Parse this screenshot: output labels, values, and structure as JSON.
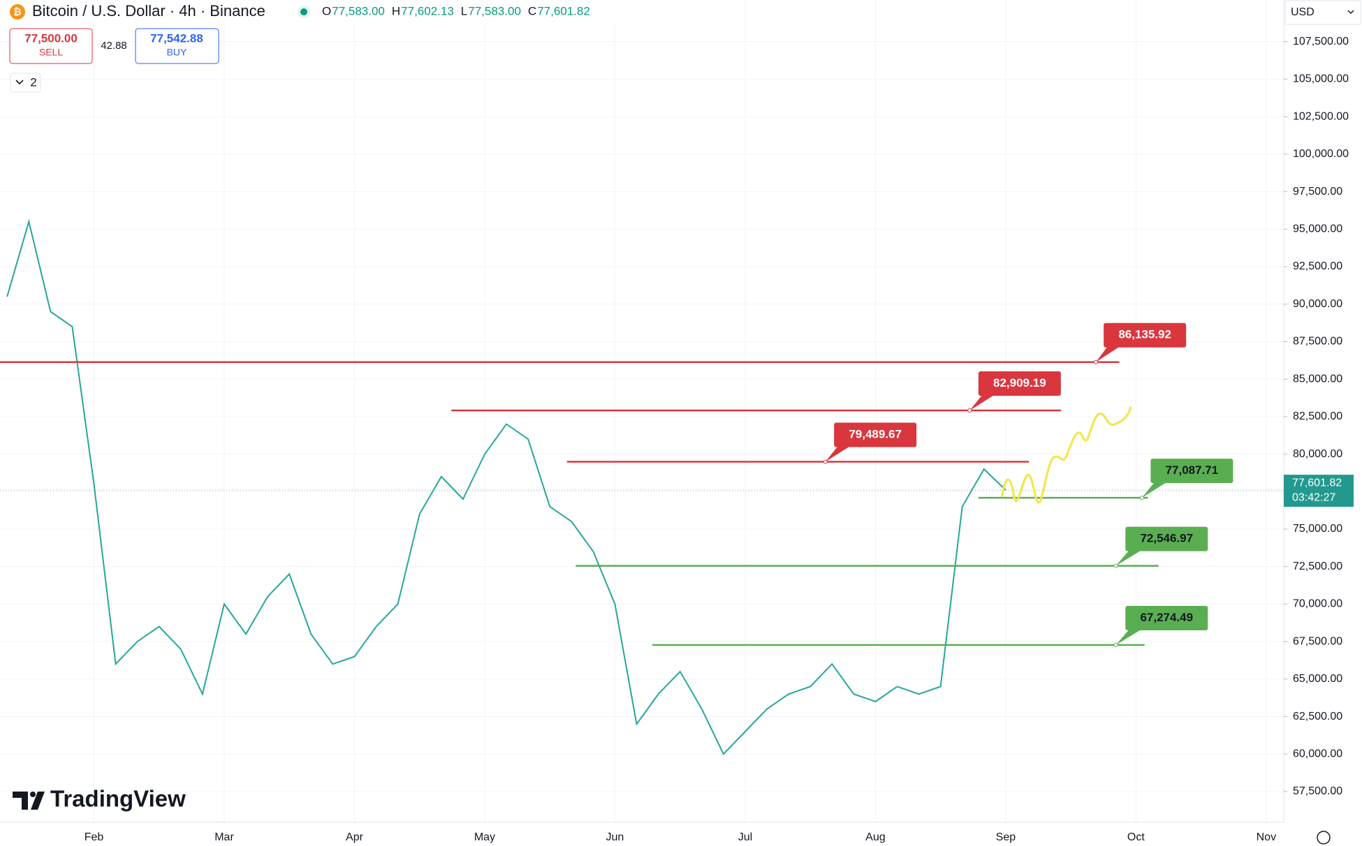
{
  "chart_data": {
    "type": "line",
    "title": "Bitcoin / U.S. Dollar · 4h · Binance",
    "ohlc": [
      {
        "key": "O",
        "value": "77,583.00"
      },
      {
        "key": "H",
        "value": "77,602.13"
      },
      {
        "key": "L",
        "value": "77,583.00"
      },
      {
        "key": "C",
        "value": "77,601.82"
      }
    ],
    "sell": {
      "price": "77,500.00",
      "label": "SELL"
    },
    "spread": "42.88",
    "buy": {
      "price": "77,542.88",
      "label": "BUY"
    },
    "indicators_count": "2",
    "currency": "USD",
    "watermark": "TradingView",
    "categories": [
      null,
      null,
      null,
      null,
      "Feb",
      null,
      null,
      null,
      null,
      null,
      "Mar",
      null,
      null,
      null,
      null,
      null,
      "Apr",
      null,
      null,
      null,
      null,
      null,
      "May",
      null,
      null,
      null,
      null,
      null,
      "Jun",
      null,
      null,
      null,
      null,
      null,
      "Jul",
      null,
      null,
      null,
      null,
      null,
      "Aug",
      null,
      null,
      null,
      null,
      null,
      "Sep",
      null,
      null,
      null,
      null,
      null,
      "Oct",
      null,
      null,
      null,
      null,
      null,
      "Nov"
    ],
    "series": [
      {
        "name": "BTCUSD",
        "color": "#26a69a",
        "values": [
          90500,
          95500,
          89500,
          88500,
          78000,
          66000,
          67500,
          68500,
          67000,
          64000,
          70000,
          68000,
          70500,
          72000,
          68000,
          66000,
          66500,
          68500,
          70000,
          76000,
          78500,
          77000,
          80000,
          82000,
          81000,
          76500,
          75500,
          73500,
          70000,
          62000,
          64000,
          65500,
          63000,
          60000,
          61500,
          63000,
          64000,
          64500,
          66000,
          64000,
          63500,
          64500,
          64000,
          64500,
          76500,
          79000,
          77601.82,
          null,
          null,
          null,
          null,
          null,
          null,
          null,
          null,
          null,
          null,
          null,
          null
        ]
      }
    ],
    "ylim": [
      55590,
      110280
    ],
    "yticks": [
      {
        "value": 57500,
        "label": "57,500.00"
      },
      {
        "value": 60000,
        "label": "60,000.00"
      },
      {
        "value": 62500,
        "label": "62,500.00"
      },
      {
        "value": 65000,
        "label": "65,000.00"
      },
      {
        "value": 67500,
        "label": "67,500.00"
      },
      {
        "value": 70000,
        "label": "70,000.00"
      },
      {
        "value": 72500,
        "label": "72,500.00"
      },
      {
        "value": 75000,
        "label": "75,000.00"
      },
      {
        "value": 77500,
        "label": "77,500.00"
      },
      {
        "value": 80000,
        "label": "80,000.00"
      },
      {
        "value": 82500,
        "label": "82,500.00"
      },
      {
        "value": 85000,
        "label": "85,000.00"
      },
      {
        "value": 87500,
        "label": "87,500.00"
      },
      {
        "value": 90000,
        "label": "90,000.00"
      },
      {
        "value": 92500,
        "label": "92,500.00"
      },
      {
        "value": 95000,
        "label": "95,000.00"
      },
      {
        "value": 97500,
        "label": "97,500.00"
      },
      {
        "value": 100000,
        "label": "100,000.00"
      },
      {
        "value": 102500,
        "label": "102,500.00"
      },
      {
        "value": 105000,
        "label": "105,000.00"
      },
      {
        "value": 107500,
        "label": "107,500.00"
      }
    ],
    "grid": true,
    "last_price": {
      "value": 77601.82,
      "label": "77,601.82",
      "countdown": "03:42:27",
      "color": "#22998e"
    },
    "levels": [
      {
        "value": 86135.92,
        "label": "86,135.92",
        "color": "#d9363e"
      },
      {
        "value": 82909.19,
        "label": "82,909.19",
        "color": "#d9363e"
      },
      {
        "value": 79489.67,
        "label": "79,489.67",
        "color": "#d9363e"
      },
      {
        "value": 77087.71,
        "label": "77,087.71",
        "color": "#5aae52"
      },
      {
        "value": 72546.97,
        "label": "72,546.97",
        "color": "#5aae52"
      },
      {
        "value": 67274.49,
        "label": "67,274.49",
        "color": "#5aae52"
      }
    ]
  }
}
